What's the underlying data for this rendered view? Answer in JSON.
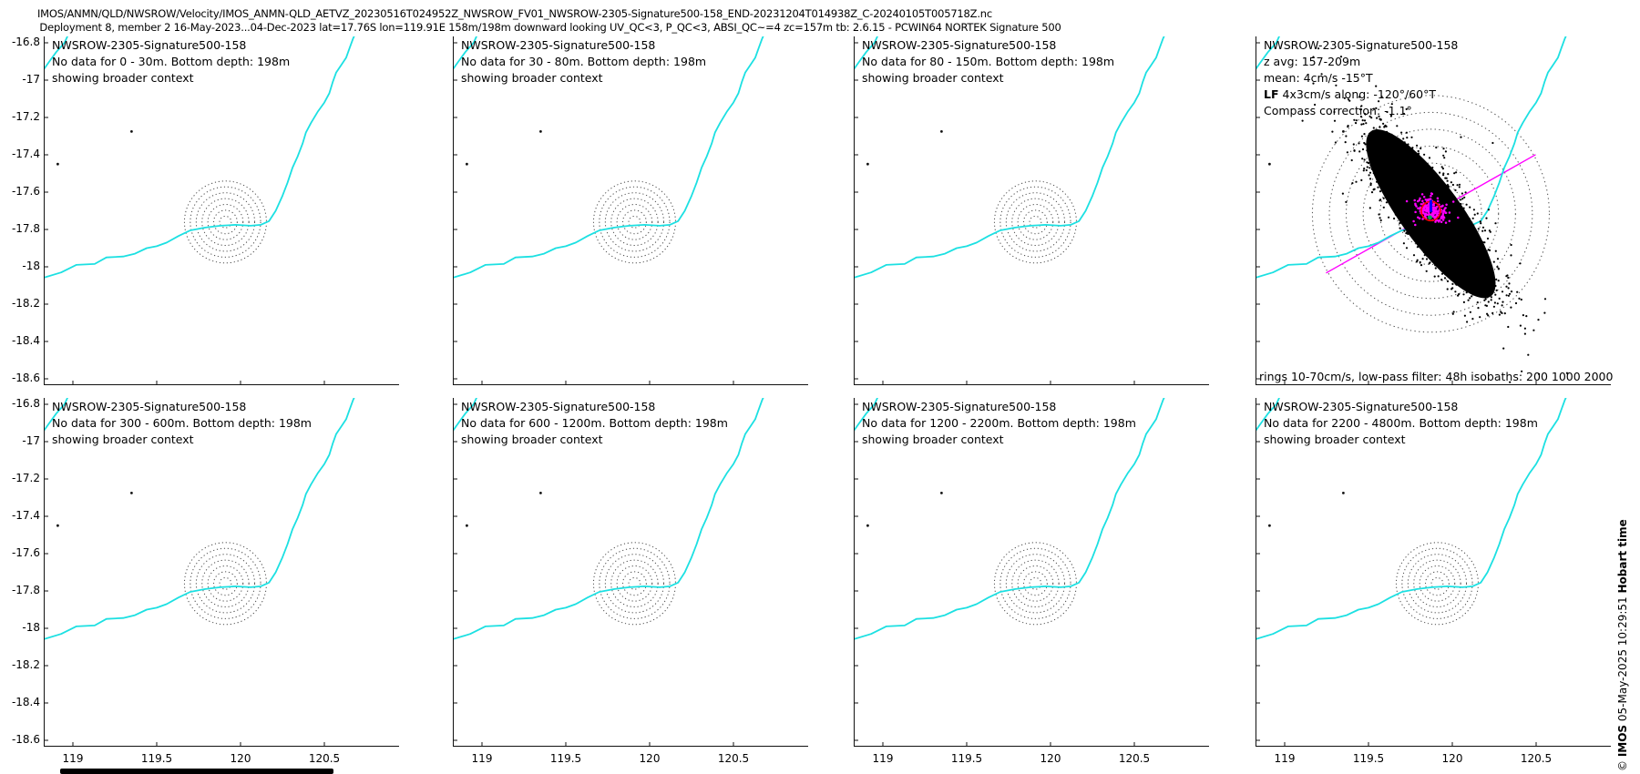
{
  "header": {
    "line1": "IMOS/ANMN/QLD/NWSROW/Velocity/IMOS_ANMN-QLD_AETVZ_20230516T024952Z_NWSROW_FV01_NWSROW-2305-Signature500-158_END-20231204T014938Z_C-20240105T005718Z.nc",
    "line2": "Deployment 8, member 2 16-May-2023...04-Dec-2023 lat=17.76S lon=119.91E 158m/198m downward looking UV_QC<3, P_QC<3, ABSI_QC~=4 zc=157m tb: 2.6.15 - PCWIN64 NORTEK Signature 500"
  },
  "panels": [
    {
      "station": "NWSROW-2305-Signature500-158",
      "no_data": "No data for 0 - 30m. Bottom depth: 198m",
      "context": "showing broader context"
    },
    {
      "station": "NWSROW-2305-Signature500-158",
      "no_data": "No data for 30 - 80m. Bottom depth: 198m",
      "context": "showing broader context"
    },
    {
      "station": "NWSROW-2305-Signature500-158",
      "no_data": "No data for 80 - 150m. Bottom depth: 198m",
      "context": "showing broader context"
    },
    {
      "station": "NWSROW-2305-Signature500-158",
      "z_avg": "z avg: 157-209m",
      "mean": "mean: 4cm/s -15°T",
      "lf_bold": "LF",
      "lf_rest": " 4x3cm/s along: -120°/60°T",
      "compass": "Compass correction: -1.1°",
      "footer": "rings 10-70cm/s, low-pass filter: 48h isobaths: 200 1000 2000"
    },
    {
      "station": "NWSROW-2305-Signature500-158",
      "no_data": "No data for 300 - 600m. Bottom depth: 198m",
      "context": "showing broader context"
    },
    {
      "station": "NWSROW-2305-Signature500-158",
      "no_data": "No data for 600 - 1200m. Bottom depth: 198m",
      "context": "showing broader context"
    },
    {
      "station": "NWSROW-2305-Signature500-158",
      "no_data": "No data for 1200 - 2200m. Bottom depth: 198m",
      "context": "showing broader context"
    },
    {
      "station": "NWSROW-2305-Signature500-158",
      "no_data": "No data for 2200 - 4800m. Bottom depth: 198m",
      "context": "showing broader context"
    }
  ],
  "watermark": {
    "prefix": "© ",
    "org": "IMOS",
    "middle": " 05-May-2025 10:29:51 ",
    "suffix": "Hobart time"
  },
  "chart_data": {
    "type": "scatter",
    "title": "IMOS ANMN NWSROW-2305 Signature500-158 velocity deployment overview, 2x4 map subplots",
    "x_ticks": [
      119,
      119.5,
      120,
      120.5
    ],
    "y_ticks": [
      -16.8,
      -17,
      -17.2,
      -17.4,
      -17.6,
      -17.8,
      -18,
      -18.2,
      -18.4,
      -18.6
    ],
    "lon_range": [
      118.83,
      120.95
    ],
    "lat_range": [
      -18.63,
      -16.77
    ],
    "mooring": {
      "lon": 119.91,
      "lat": -17.76
    },
    "map_rings": {
      "count": 7,
      "speeds_cm_s": "10-70"
    },
    "velocity_panel": {
      "z_avg_m": [
        157,
        209
      ],
      "mean_speed_cm_s": 4,
      "mean_direction_degT": -15,
      "lf_std_cm_s": [
        4,
        3
      ],
      "lf_major_axis_degT": [
        -120,
        60
      ],
      "compass_correction_deg": -1.1,
      "rings_cm_s": [
        10,
        20,
        30,
        40,
        50,
        60,
        70
      ],
      "low_pass_filter_h": 48,
      "isobaths_m": [
        200,
        1000,
        2000
      ],
      "tidal_scatter_major_axis_screen_deg": 54
    },
    "coastline": [
      [
        118.82,
        -18.06
      ],
      [
        118.93,
        -18.03
      ],
      [
        119.02,
        -17.99
      ],
      [
        119.13,
        -17.985
      ],
      [
        119.2,
        -17.95
      ],
      [
        119.3,
        -17.945
      ],
      [
        119.37,
        -17.93
      ],
      [
        119.44,
        -17.9
      ],
      [
        119.5,
        -17.89
      ],
      [
        119.56,
        -17.87
      ],
      [
        119.63,
        -17.835
      ],
      [
        119.7,
        -17.805
      ],
      [
        119.79,
        -17.79
      ],
      [
        119.88,
        -17.78
      ],
      [
        119.97,
        -17.775
      ],
      [
        120.06,
        -17.78
      ],
      [
        120.12,
        -17.775
      ],
      [
        120.17,
        -17.755
      ],
      [
        120.21,
        -17.7
      ],
      [
        120.25,
        -17.62
      ],
      [
        120.28,
        -17.55
      ],
      [
        120.31,
        -17.47
      ],
      [
        120.34,
        -17.41
      ],
      [
        120.37,
        -17.34
      ],
      [
        120.39,
        -17.28
      ],
      [
        120.42,
        -17.23
      ],
      [
        120.46,
        -17.17
      ],
      [
        120.5,
        -17.12
      ],
      [
        120.53,
        -17.07
      ],
      [
        120.55,
        -17.01
      ],
      [
        120.57,
        -16.96
      ],
      [
        120.6,
        -16.92
      ],
      [
        120.63,
        -16.88
      ],
      [
        120.65,
        -16.83
      ],
      [
        120.67,
        -16.78
      ],
      [
        120.68,
        -16.76
      ]
    ],
    "coastline_nw": [
      [
        118.82,
        -16.95
      ],
      [
        118.86,
        -16.9
      ],
      [
        118.9,
        -16.85
      ],
      [
        118.95,
        -16.8
      ],
      [
        118.97,
        -16.76
      ]
    ],
    "islands": [
      [
        119.35,
        -17.275
      ],
      [
        118.91,
        -17.45
      ]
    ],
    "colors": {
      "coast": "#1ce0e2",
      "rings": "#4a4a4a",
      "tidal_scatter": "#000000",
      "lf_scatter": "#ff00ff",
      "lf_line": "#ff00ff",
      "mean_circle": "#ff0000",
      "mean_vector": "#0000ff",
      "lf_mean_dot": "#00a651"
    }
  }
}
